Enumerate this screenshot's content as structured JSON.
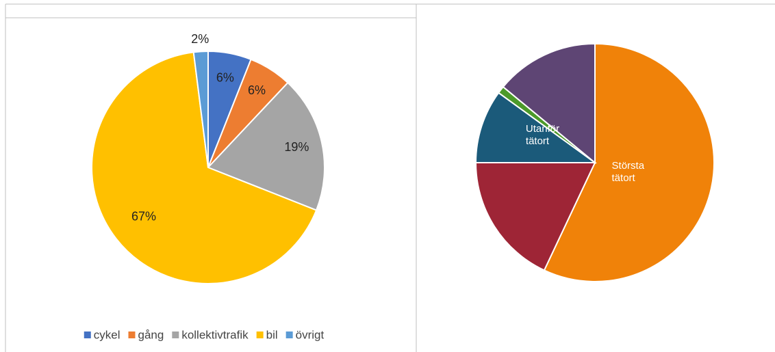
{
  "chart_data": [
    {
      "type": "pie",
      "categories": [
        "cykel",
        "gång",
        "kollektivtrafik",
        "bil",
        "övrigt"
      ],
      "values": [
        6,
        6,
        19,
        67,
        2
      ],
      "value_labels": [
        "6%",
        "6%",
        "19%",
        "67%",
        "2%"
      ],
      "colors": [
        "#4472c4",
        "#ed7d31",
        "#a5a5a5",
        "#ffc000",
        "#5b9bd5"
      ],
      "legend": "bottom"
    },
    {
      "type": "pie",
      "categories": [
        "Största tätort",
        null,
        null,
        null,
        "Utanför tätort"
      ],
      "values": [
        57,
        18,
        10,
        1,
        14
      ],
      "colors": [
        "#f08209",
        "#9e2536",
        "#1b5a7a",
        "#4c9a2a",
        "#5e4574"
      ]
    }
  ]
}
